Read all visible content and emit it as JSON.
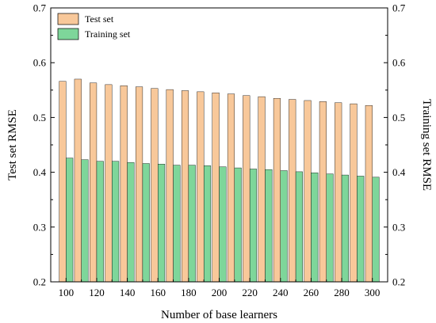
{
  "chart_data": {
    "type": "bar",
    "xlabel": "Number of base learners",
    "ylabel_left": "Test set RMSE",
    "ylabel_right": "Training set RMSE",
    "ylim": [
      0.2,
      0.7
    ],
    "yticks": [
      0.2,
      0.3,
      0.4,
      0.5,
      0.6,
      0.7
    ],
    "xticks": [
      100,
      120,
      140,
      160,
      180,
      200,
      220,
      240,
      260,
      280,
      300
    ],
    "categories": [
      100,
      110,
      120,
      130,
      140,
      150,
      160,
      170,
      180,
      190,
      200,
      210,
      220,
      230,
      240,
      250,
      260,
      270,
      280,
      290,
      300
    ],
    "series": [
      {
        "name": "Test set",
        "color": "#F8C89A",
        "values": [
          0.566,
          0.57,
          0.563,
          0.56,
          0.558,
          0.556,
          0.553,
          0.551,
          0.549,
          0.547,
          0.545,
          0.543,
          0.54,
          0.538,
          0.535,
          0.533,
          0.531,
          0.529,
          0.527,
          0.525,
          0.522
        ]
      },
      {
        "name": "Training set",
        "color": "#7ED69A",
        "values": [
          0.426,
          0.423,
          0.42,
          0.42,
          0.418,
          0.416,
          0.415,
          0.413,
          0.413,
          0.412,
          0.41,
          0.408,
          0.406,
          0.405,
          0.403,
          0.401,
          0.399,
          0.397,
          0.395,
          0.393,
          0.391
        ]
      }
    ],
    "legend_position": "top-left",
    "grid": false
  }
}
